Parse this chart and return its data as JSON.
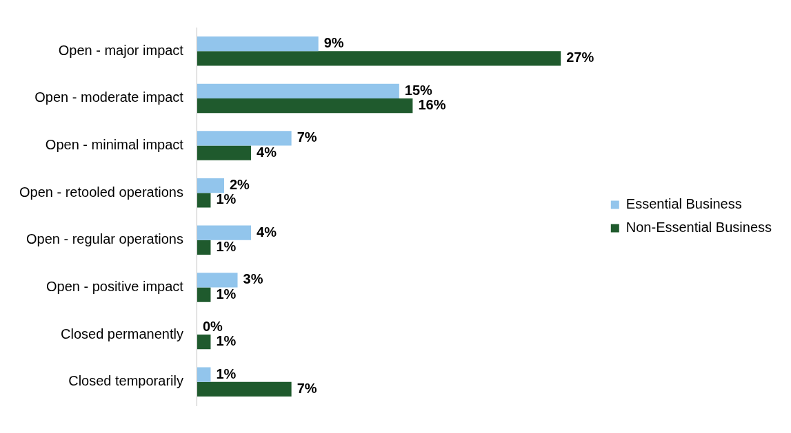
{
  "chart_data": {
    "type": "bar",
    "orientation": "horizontal",
    "categories": [
      "Open - major impact",
      "Open - moderate impact",
      "Open - minimal impact",
      "Open - retooled operations",
      "Open - regular operations",
      "Open - positive impact",
      "Closed permanently",
      "Closed temporarily"
    ],
    "series": [
      {
        "name": "Essential Business",
        "color": "#92c5ec",
        "values": [
          9,
          15,
          7,
          2,
          4,
          3,
          0,
          1
        ],
        "value_labels": [
          "9%",
          "15%",
          "7%",
          "2%",
          "4%",
          "3%",
          "0%",
          "1%"
        ]
      },
      {
        "name": "Non-Essential Business",
        "color": "#1f5a2d",
        "values": [
          27,
          16,
          4,
          1,
          1,
          1,
          1,
          7
        ],
        "value_labels": [
          "27%",
          "16%",
          "4%",
          "1%",
          "1%",
          "1%",
          "1%",
          "7%"
        ]
      }
    ],
    "legend": "right",
    "grid": false
  }
}
